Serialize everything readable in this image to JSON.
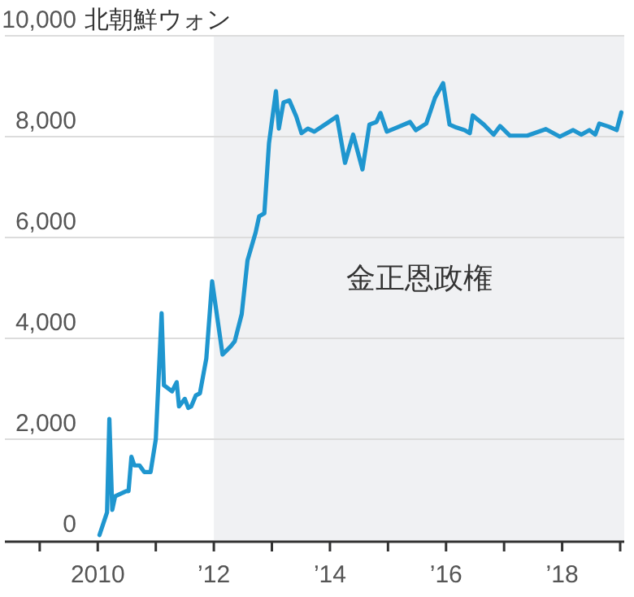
{
  "chart_data": {
    "type": "line",
    "ylabel": "北朝鮮ウォン",
    "grid": "y",
    "xlim": [
      2008.4,
      2019.07
    ],
    "ylim": [
      0,
      10000
    ],
    "xticks": [
      {
        "value": 2009,
        "label": null
      },
      2010,
      {
        "value": 2011,
        "label": null
      },
      {
        "value": 2012,
        "label": "’12"
      },
      {
        "value": 2013,
        "label": null
      },
      {
        "value": 2014,
        "label": "’14"
      },
      {
        "value": 2015,
        "label": null
      },
      {
        "value": 2016,
        "label": "’16"
      },
      {
        "value": 2017,
        "label": null
      },
      {
        "value": 2018,
        "label": "’18"
      },
      {
        "value": 2019,
        "label": null
      }
    ],
    "yticks": [
      0,
      {
        "value": 2000,
        "label": "2,000"
      },
      {
        "value": 4000,
        "label": "4,000"
      },
      {
        "value": 6000,
        "label": "6,000"
      },
      {
        "value": 8000,
        "label": "8,000"
      },
      {
        "value": 10000,
        "label": "10,000"
      }
    ],
    "bands": [
      {
        "axis": "x",
        "from": 2012,
        "to": 2019.07,
        "label": "金正恩政権",
        "color": "#f0f1f3"
      }
    ],
    "series": [
      {
        "color": "#1f96cf",
        "x": [
          2010.03,
          2010.16,
          2010.2,
          2010.25,
          2010.3,
          2010.49,
          2010.53,
          2010.58,
          2010.63,
          2010.72,
          2010.8,
          2010.91,
          2011.0,
          2011.1,
          2011.14,
          2011.28,
          2011.36,
          2011.4,
          2011.5,
          2011.56,
          2011.61,
          2011.69,
          2011.76,
          2011.87,
          2011.97,
          2012.15,
          2012.29,
          2012.36,
          2012.48,
          2012.58,
          2012.72,
          2012.78,
          2012.87,
          2012.95,
          2013.07,
          2013.12,
          2013.2,
          2013.3,
          2013.42,
          2013.51,
          2013.62,
          2013.73,
          2013.98,
          2014.12,
          2014.26,
          2014.4,
          2014.56,
          2014.68,
          2014.8,
          2014.87,
          2014.98,
          2015.15,
          2015.38,
          2015.48,
          2015.66,
          2015.81,
          2015.95,
          2016.06,
          2016.18,
          2016.32,
          2016.41,
          2016.46,
          2016.65,
          2016.82,
          2016.93,
          2017.1,
          2017.4,
          2017.72,
          2017.96,
          2018.19,
          2018.33,
          2018.47,
          2018.57,
          2018.64,
          2018.8,
          2018.94,
          2019.02
        ],
        "values": [
          100,
          550,
          2400,
          600,
          870,
          970,
          970,
          1650,
          1480,
          1480,
          1350,
          1350,
          2000,
          4500,
          3070,
          2950,
          3130,
          2650,
          2800,
          2620,
          2650,
          2870,
          2910,
          3600,
          5130,
          3680,
          3840,
          3940,
          4480,
          5550,
          6100,
          6420,
          6480,
          7870,
          8900,
          8160,
          8680,
          8720,
          8400,
          8070,
          8160,
          8100,
          8290,
          8400,
          7480,
          8040,
          7350,
          8240,
          8290,
          8470,
          8100,
          8180,
          8290,
          8130,
          8260,
          8770,
          9060,
          8240,
          8180,
          8130,
          8070,
          8420,
          8240,
          8040,
          8210,
          8020,
          8020,
          8150,
          8000,
          8130,
          8040,
          8130,
          8040,
          8260,
          8200,
          8130,
          8480
        ]
      }
    ]
  }
}
